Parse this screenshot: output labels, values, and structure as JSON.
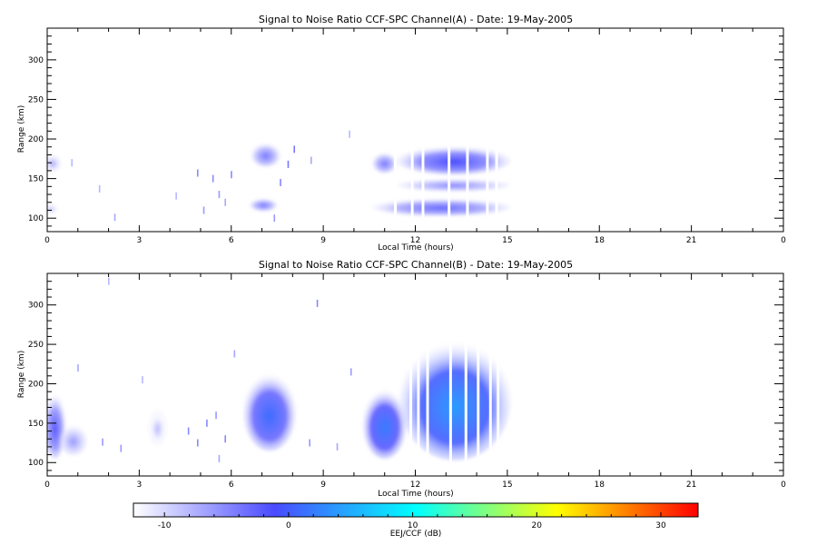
{
  "chart_data": [
    {
      "type": "heatmap",
      "title": "Signal to Noise Ratio CCF-SPC Channel(A) - Date: 19-May-2005",
      "xlabel": "Local Time (hours)",
      "ylabel": "Range (km)",
      "xlim": [
        0,
        24
      ],
      "ylim": [
        83,
        340
      ],
      "x_ticks": [
        "0",
        "3",
        "6",
        "9",
        "12",
        "15",
        "18",
        "21",
        "0"
      ],
      "y_ticks": [
        100,
        150,
        200,
        250,
        300
      ],
      "blobs": [
        {
          "t0": 0.0,
          "t1": 0.35,
          "r0": 162,
          "r1": 178,
          "v": -7
        },
        {
          "t0": 0.0,
          "t1": 0.25,
          "r0": 108,
          "r1": 116,
          "v": -8
        },
        {
          "t0": 6.75,
          "t1": 7.5,
          "r0": 168,
          "r1": 192,
          "v": -4
        },
        {
          "t0": 6.7,
          "t1": 7.4,
          "r0": 112,
          "r1": 122,
          "v": -4
        },
        {
          "t0": 10.7,
          "t1": 11.3,
          "r0": 160,
          "r1": 180,
          "v": -4
        },
        {
          "t0": 11.5,
          "t1": 15.0,
          "r0": 158,
          "r1": 188,
          "v": -1
        },
        {
          "t0": 11.5,
          "t1": 15.0,
          "r0": 137,
          "r1": 147,
          "v": -5
        },
        {
          "t0": 10.7,
          "t1": 15.0,
          "r0": 106,
          "r1": 122,
          "v": -3
        }
      ],
      "gaps": [
        11.35,
        11.9,
        12.25,
        13.1,
        13.7,
        14.35,
        14.65
      ],
      "speckle": [
        {
          "t": 0.8,
          "r": 170,
          "v": -8
        },
        {
          "t": 1.7,
          "r": 137,
          "v": -8
        },
        {
          "t": 2.2,
          "r": 101,
          "v": -7
        },
        {
          "t": 4.9,
          "r": 157,
          "v": -5
        },
        {
          "t": 5.1,
          "r": 110,
          "v": -6
        },
        {
          "t": 5.4,
          "r": 150,
          "v": -5
        },
        {
          "t": 5.6,
          "r": 130,
          "v": -6
        },
        {
          "t": 5.8,
          "r": 120,
          "v": -7
        },
        {
          "t": 6.0,
          "r": 155,
          "v": -5
        },
        {
          "t": 7.6,
          "r": 145,
          "v": -5
        },
        {
          "t": 7.85,
          "r": 168,
          "v": -4
        },
        {
          "t": 7.4,
          "r": 100,
          "v": -6
        },
        {
          "t": 8.05,
          "r": 187,
          "v": -4
        },
        {
          "t": 8.6,
          "r": 173,
          "v": -7
        },
        {
          "t": 9.85,
          "r": 206,
          "v": -8
        },
        {
          "t": 4.2,
          "r": 128,
          "v": -8
        }
      ]
    },
    {
      "type": "heatmap",
      "title": "Signal to Noise Ratio CCF-SPC Channel(B) - Date: 19-May-2005",
      "xlabel": "Local Time (hours)",
      "ylabel": "Range (km)",
      "xlim": [
        0,
        24
      ],
      "ylim": [
        83,
        340
      ],
      "x_ticks": [
        "0",
        "3",
        "6",
        "9",
        "12",
        "15",
        "18",
        "21",
        "0"
      ],
      "y_ticks": [
        100,
        150,
        200,
        250,
        300
      ],
      "blobs": [
        {
          "t0": 0.0,
          "t1": 0.5,
          "r0": 108,
          "r1": 185,
          "v": -2
        },
        {
          "t0": 0.5,
          "t1": 1.2,
          "r0": 112,
          "r1": 145,
          "v": -6
        },
        {
          "t0": 3.4,
          "t1": 3.8,
          "r0": 125,
          "r1": 165,
          "v": -8
        },
        {
          "t0": 6.5,
          "t1": 8.0,
          "r0": 118,
          "r1": 210,
          "v": 1
        },
        {
          "t0": 10.4,
          "t1": 11.6,
          "r0": 108,
          "r1": 190,
          "v": 2
        },
        {
          "t0": 11.6,
          "t1": 15.0,
          "r0": 106,
          "r1": 250,
          "v": 4
        }
      ],
      "gaps": [
        11.85,
        12.1,
        12.4,
        13.15,
        13.65,
        14.05,
        14.45,
        14.7
      ],
      "speckle": [
        {
          "t": 1.0,
          "r": 220,
          "v": -7
        },
        {
          "t": 1.8,
          "r": 126,
          "v": -6
        },
        {
          "t": 2.4,
          "r": 118,
          "v": -6
        },
        {
          "t": 3.1,
          "r": 205,
          "v": -8
        },
        {
          "t": 4.6,
          "r": 140,
          "v": -5
        },
        {
          "t": 4.9,
          "r": 125,
          "v": -5
        },
        {
          "t": 5.2,
          "r": 150,
          "v": -5
        },
        {
          "t": 5.5,
          "r": 160,
          "v": -6
        },
        {
          "t": 5.8,
          "r": 130,
          "v": -5
        },
        {
          "t": 6.1,
          "r": 238,
          "v": -7
        },
        {
          "t": 8.8,
          "r": 302,
          "v": -5
        },
        {
          "t": 8.55,
          "r": 125,
          "v": -6
        },
        {
          "t": 9.9,
          "r": 215,
          "v": -6
        },
        {
          "t": 9.45,
          "r": 120,
          "v": -7
        },
        {
          "t": 2.0,
          "r": 330,
          "v": -8
        },
        {
          "t": 5.6,
          "r": 105,
          "v": -7
        }
      ]
    }
  ],
  "colorbar": {
    "label": "EEJ/CCF (dB)",
    "min": -12.5,
    "max": 33,
    "ticks": [
      -10,
      0,
      10,
      20,
      30
    ],
    "stops": [
      "#ffffff",
      "#4a4aff",
      "#00ffff",
      "#ffff00",
      "#ff0000"
    ]
  }
}
